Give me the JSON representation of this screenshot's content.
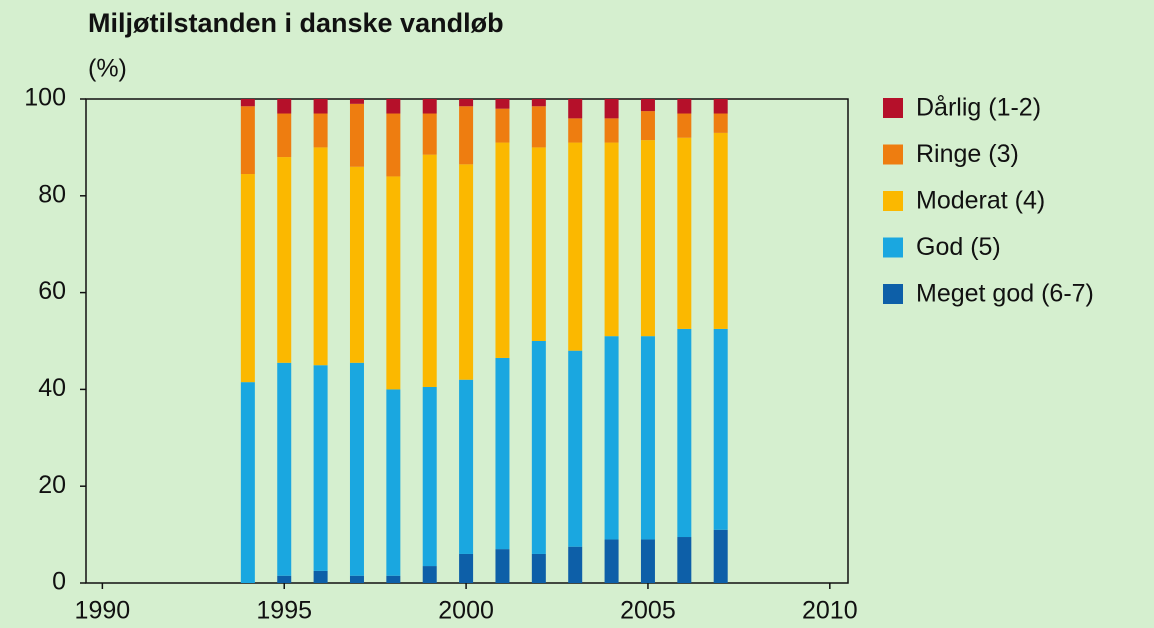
{
  "chart_data": {
    "type": "stacked_bar",
    "title": "Miljøtilstanden i danske vandløb",
    "y_label": "(%)",
    "x": [
      1994,
      1995,
      1996,
      1997,
      1998,
      1999,
      2000,
      2001,
      2002,
      2003,
      2004,
      2005,
      2006,
      2007
    ],
    "series": [
      {
        "name": "Meget god (6-7)",
        "color": "#0d5fa8",
        "values": [
          0,
          1.5,
          2.5,
          1.5,
          1.5,
          3.5,
          6,
          7,
          6,
          7.5,
          9,
          9,
          9.5,
          11
        ]
      },
      {
        "name": "God (5)",
        "color": "#1aa7e0",
        "values": [
          41.5,
          44,
          42.5,
          44,
          38.5,
          37,
          36,
          39.5,
          44,
          40.5,
          42,
          42,
          43,
          41.5
        ]
      },
      {
        "name": "Moderat (4)",
        "color": "#fbb800",
        "values": [
          43,
          42.5,
          45,
          40.5,
          44,
          48,
          44.5,
          44.5,
          40,
          43,
          40,
          40.5,
          39.5,
          40.5
        ]
      },
      {
        "name": "Ringe (3)",
        "color": "#ee7d10",
        "values": [
          14,
          9,
          7,
          13,
          13,
          8.5,
          12,
          7,
          8.5,
          5,
          5,
          6,
          5,
          4
        ]
      },
      {
        "name": "Dårlig (1-2)",
        "color": "#b5102a",
        "values": [
          1.5,
          3,
          3,
          1,
          3,
          3,
          1.5,
          2,
          1.5,
          4,
          4,
          2.5,
          3,
          3
        ]
      }
    ],
    "xlim": [
      1989.55,
      2010.5
    ],
    "xticks": [
      1990,
      1995,
      2000,
      2005,
      2010
    ],
    "ylim": [
      0,
      100
    ],
    "yticks": [
      0,
      20,
      40,
      60,
      80,
      100
    ],
    "grid": false
  }
}
